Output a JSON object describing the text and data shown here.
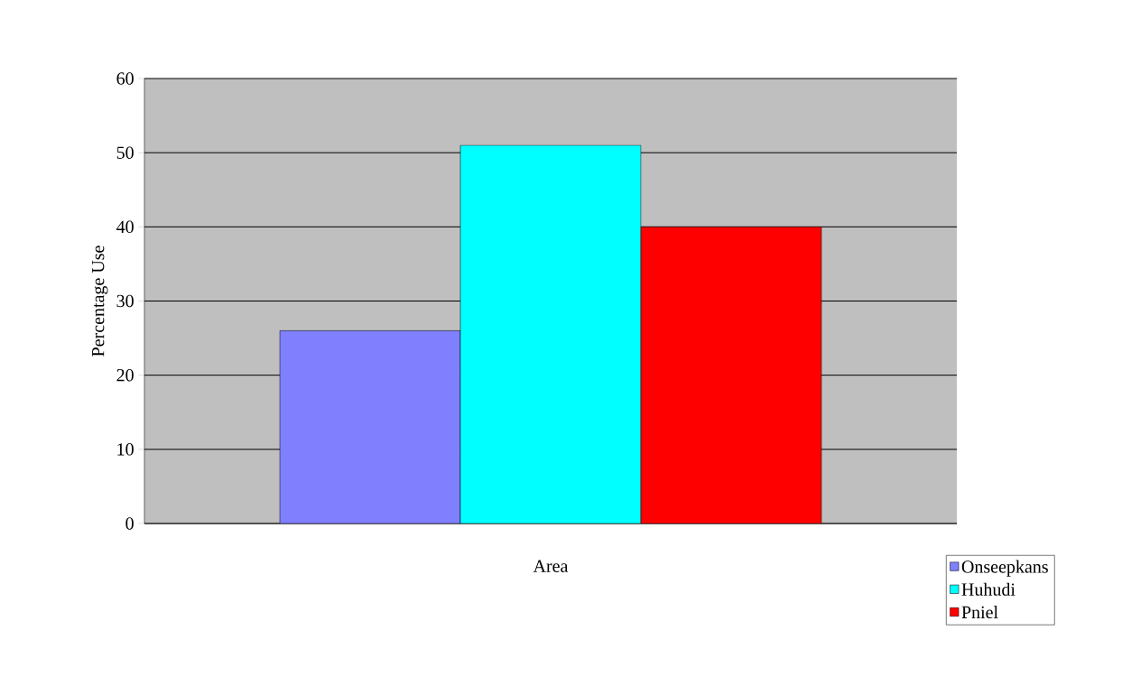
{
  "chart_data": {
    "type": "bar",
    "xlabel": "Area",
    "ylabel": "Percentage Use",
    "categories": [
      null
    ],
    "series": [
      {
        "name": "Onseepkans",
        "color": "#8080ff",
        "values": [
          26
        ]
      },
      {
        "name": "Huhudi",
        "color": "#00ffff",
        "values": [
          51
        ]
      },
      {
        "name": "Pniel",
        "color": "#ff0000",
        "values": [
          40
        ]
      }
    ],
    "ylim": [
      0,
      60
    ],
    "yticks": [
      0,
      10,
      20,
      30,
      40,
      50,
      60
    ],
    "grid": "y",
    "legend": "bottom right"
  }
}
